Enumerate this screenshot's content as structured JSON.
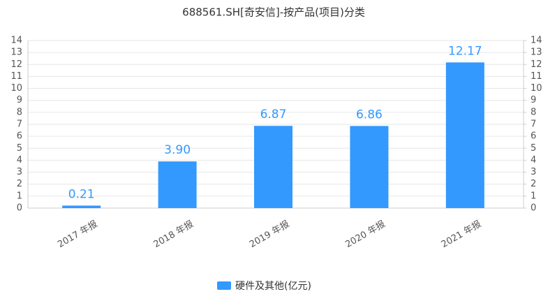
{
  "chart_data": {
    "type": "bar",
    "title": "688561.SH[奇安信]-按产品(项目)分类",
    "categories": [
      "2017 年报",
      "2018 年报",
      "2019 年报",
      "2020 年报",
      "2021 年报"
    ],
    "series": [
      {
        "name": "硬件及其他(亿元)",
        "color": "#3399ff",
        "values": [
          0.21,
          3.9,
          6.87,
          6.86,
          12.17
        ],
        "value_labels": [
          "0.21",
          "3.90",
          "6.87",
          "6.86",
          "12.17"
        ]
      }
    ],
    "ylim": [
      0,
      14
    ],
    "yticks": [
      0,
      1,
      2,
      3,
      4,
      5,
      6,
      7,
      8,
      9,
      10,
      11,
      12,
      13,
      14
    ],
    "y2lim": [
      0,
      14
    ],
    "y2ticks": [
      0,
      1,
      2,
      3,
      4,
      5,
      6,
      7,
      8,
      9,
      10,
      11,
      12,
      13,
      14
    ],
    "grid": true,
    "legend": "bottom"
  }
}
